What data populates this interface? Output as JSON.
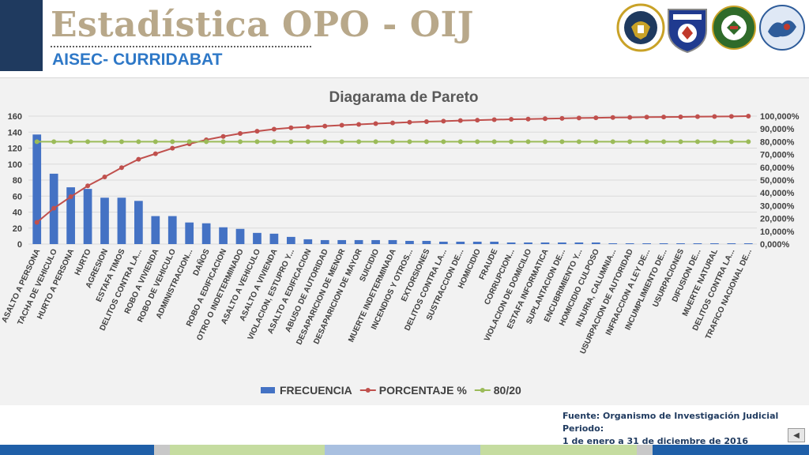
{
  "header": {
    "title": "Estadística OPO - OIJ",
    "subtitle": "AISEC- CURRIDABAT"
  },
  "logos": [
    {
      "name": "us-embassy-seal",
      "text": "UNITED STATES OF AMERICA EMBASSY"
    },
    {
      "name": "fuerza-publica-badge",
      "text": "FUERZA PUBLICA"
    },
    {
      "name": "green-police-emblem",
      "text": ""
    },
    {
      "name": "blue-map-emblem",
      "text": "AISEC"
    }
  ],
  "chart_data": {
    "type": "bar",
    "title": "Diagarama de Pareto",
    "categories": [
      "ASALTO A PERSONA",
      "TACHA DE VEHICULO",
      "HURTO A PERSONA",
      "HURTO",
      "AGRESION",
      "ESTAFA TIMOS",
      "DELITOS CONTRA LA...",
      "ROBO A VIVIENDA",
      "ROBO DE VEHICULO",
      "ADMINISTRACION...",
      "DAÑOS",
      "ROBO A EDIFICACION",
      "OTRO O INDETERMINADO",
      "ASALTO A VEHICULO",
      "ASALTO A VIVIENDA",
      "VIOLACION, ESTUPRO Y...",
      "ASALTO A EDIFICACION",
      "ABUSO DE AUTORIDAD",
      "DESAPARICION DE MENOR",
      "DESAPARICION DE MAYOR",
      "SUICIDIO",
      "MUERTE INDETERMINADA",
      "INCENDIOS Y OTROS...",
      "EXTORSIONES",
      "DELITOS CONTRA LA...",
      "SUSTRACCION DE...",
      "HOMICIDIO",
      "FRAUDE",
      "CORRUPCION...",
      "VIOLACION DE DOMICILIO",
      "ESTAFA INFORMATICA",
      "SUPLANTACION DE...",
      "ENCUBRIMIENTO Y...",
      "HOMICIDIO CULPOSO",
      "INJURIA, CALUMNIA...",
      "USURPACION DE AUTORIDAD",
      "INFRACCION A LEY DE...",
      "INCUMPLIMIENTO DE...",
      "USURPACIONES",
      "DIFUSION DE...",
      "MUERTE NATURAL",
      "DELITOS CONTRA LA...",
      "TRAFICO NACIONAL DE..."
    ],
    "series": [
      {
        "name": "FRECUENCIA",
        "axis": "left",
        "kind": "bar",
        "color": "#4472c4",
        "values": [
          137,
          88,
          71,
          69,
          58,
          58,
          54,
          35,
          35,
          27,
          26,
          21,
          19,
          14,
          13,
          9,
          6,
          5,
          5,
          5,
          5,
          5,
          4,
          4,
          3,
          3,
          3,
          3,
          2,
          2,
          2,
          2,
          2,
          2,
          1,
          1,
          1,
          1,
          1,
          1,
          1,
          1,
          1
        ]
      },
      {
        "name": "PORCENTAJE %",
        "axis": "right",
        "kind": "line",
        "color": "#c0504d",
        "values": [
          17,
          28,
          37,
          45.5,
          52.5,
          59.7,
          66.3,
          70.6,
          74.9,
          78.3,
          81.5,
          84.1,
          86.4,
          88.2,
          89.8,
          90.9,
          91.6,
          92.2,
          92.9,
          93.5,
          94.1,
          94.7,
          95.2,
          95.7,
          96.1,
          96.5,
          96.8,
          97.2,
          97.5,
          97.7,
          98,
          98.2,
          98.5,
          98.7,
          98.9,
          99,
          99.2,
          99.3,
          99.4,
          99.6,
          99.7,
          99.8,
          100
        ]
      },
      {
        "name": "80/20",
        "axis": "right",
        "kind": "line",
        "color": "#9bbb59",
        "values": [
          80,
          80,
          80,
          80,
          80,
          80,
          80,
          80,
          80,
          80,
          80,
          80,
          80,
          80,
          80,
          80,
          80,
          80,
          80,
          80,
          80,
          80,
          80,
          80,
          80,
          80,
          80,
          80,
          80,
          80,
          80,
          80,
          80,
          80,
          80,
          80,
          80,
          80,
          80,
          80,
          80,
          80,
          80
        ]
      }
    ],
    "y_left": {
      "min": 0,
      "max": 160,
      "ticks": [
        "0",
        "20",
        "40",
        "60",
        "80",
        "100",
        "120",
        "140",
        "160"
      ]
    },
    "y_right": {
      "min": 0,
      "max": 100,
      "ticks": [
        "0,000%",
        "10,000%",
        "20,000%",
        "30,000%",
        "40,000%",
        "50,000%",
        "60,000%",
        "70,000%",
        "80,000%",
        "90,000%",
        "100,000%"
      ]
    },
    "grid": true,
    "legend_position": "bottom"
  },
  "footer": {
    "source_line1": "Fuente: Organismo de Investigación Judicial Periodo:",
    "source_line2": "1 de enero a 31 de diciembre de 2016",
    "nav_icon": "back-triangle-icon",
    "nav_glyph": "◀",
    "stripe_colors": [
      "#1f5fa8",
      "#c8c8c8",
      "#c5dca0",
      "#a9c0e0",
      "#c5dca0",
      "#c8c8c8",
      "#1f5fa8"
    ]
  }
}
